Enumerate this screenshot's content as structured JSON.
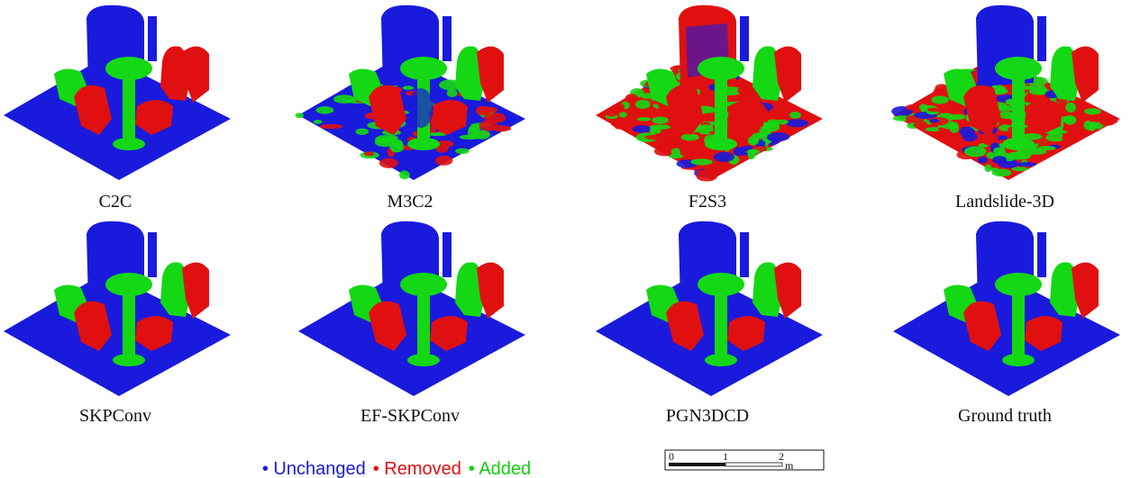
{
  "panels": [
    {
      "label": "C2C"
    },
    {
      "label": "M3C2"
    },
    {
      "label": "F2S3"
    },
    {
      "label": "Landslide-3D"
    },
    {
      "label": "SKPConv"
    },
    {
      "label": "EF-SKPConv"
    },
    {
      "label": "PGN3DCD"
    },
    {
      "label": "Ground truth"
    }
  ],
  "legend": [
    {
      "text": "• Unchanged",
      "color": "#1a1adc"
    },
    {
      "text": "• Removed",
      "color": "#e01010"
    },
    {
      "text": "• Added",
      "color": "#10d010"
    }
  ],
  "scale_bar": {
    "ticks": [
      "0",
      "1",
      "2"
    ],
    "unit": "m"
  }
}
